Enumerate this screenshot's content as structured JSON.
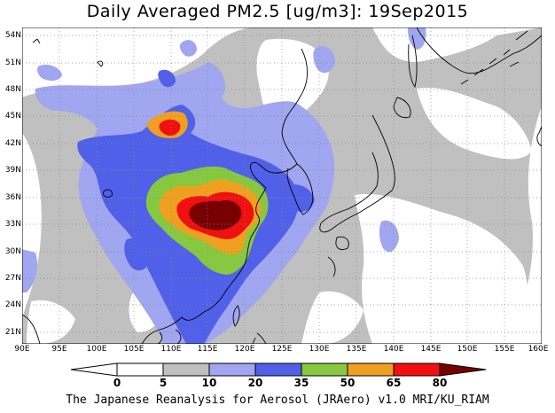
{
  "title": "Daily Averaged PM2.5 [ug/m3]: 19Sep2015",
  "footer": "The Japanese Reanalysis for Aerosol (JRAero) v1.0 MRI/KU_RIAM",
  "map": {
    "lat_ticks": [
      "54N",
      "51N",
      "48N",
      "45N",
      "42N",
      "39N",
      "36N",
      "33N",
      "30N",
      "27N",
      "24N",
      "21N"
    ],
    "lon_ticks": [
      "90E",
      "95E",
      "100E",
      "105E",
      "110E",
      "115E",
      "120E",
      "125E",
      "130E",
      "135E",
      "140E",
      "145E",
      "150E",
      "155E",
      "160E"
    ],
    "lon_range": [
      90,
      160
    ],
    "lat_range": [
      20,
      55
    ],
    "gridlines": true,
    "coastline_color": "#000000"
  },
  "colorbar": {
    "labels": [
      "0",
      "5",
      "10",
      "20",
      "35",
      "50",
      "65",
      "80"
    ],
    "colors": [
      "#ffffff",
      "#c0c0c0",
      "#a0a6f0",
      "#5060e8",
      "#88c840",
      "#f0a020",
      "#f01010",
      "#780000"
    ]
  },
  "levels": {
    "bin1_gray": "#c0c0c0",
    "bin2_lightblue": "#a0a6f0",
    "bin3_blue": "#5060e8",
    "bin4_green": "#88c840",
    "bin5_orange": "#f0a020",
    "bin6_red": "#f01010",
    "bin7_maroon": "#780000"
  }
}
